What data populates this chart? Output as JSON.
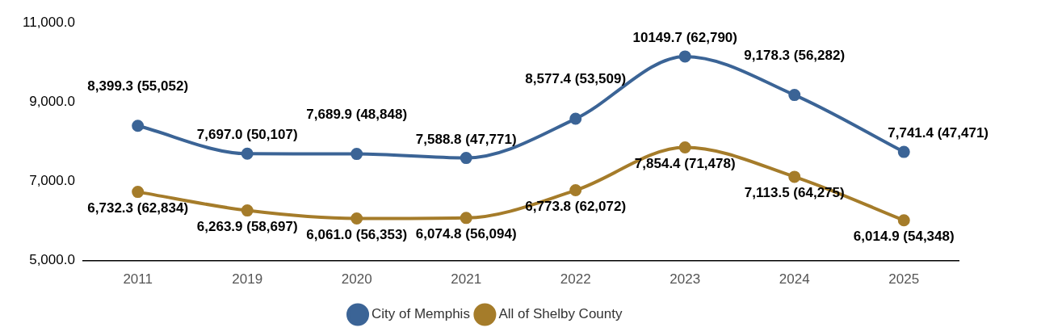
{
  "chart_data": {
    "type": "line",
    "categories": [
      "2011",
      "2019",
      "2020",
      "2021",
      "2022",
      "2023",
      "2024",
      "2025"
    ],
    "series": [
      {
        "name": "City of Memphis",
        "color": "#3b6496",
        "values": [
          8399.3,
          7697.0,
          7689.9,
          7588.8,
          8577.4,
          10149.7,
          9178.3,
          7741.4
        ],
        "value_labels": [
          "8,399.3 (55,052)",
          "7,697.0 (50,107)",
          "7,689.9 (48,848)",
          "7,588.8 (47,771)",
          "8,577.4 (53,509)",
          "10149.7 (62,790)",
          "9,178.3 (56,282)",
          "7,741.4 (47,471)"
        ]
      },
      {
        "name": "All of Shelby County",
        "color": "#a57c2a",
        "values": [
          6732.3,
          6263.9,
          6061.0,
          6074.8,
          6773.8,
          7854.4,
          7113.5,
          6014.9
        ],
        "value_labels": [
          "6,732.3 (62,834)",
          "6,263.9 (58,697)",
          "6,061.0 (56,353)",
          "6,074.8 (56,094)",
          "6,773.8 (62,072)",
          "7,854.4 (71,478)",
          "7,113.5 (64,275)",
          "6,014.9 (54,348)"
        ]
      }
    ],
    "ylim": [
      5000,
      11000
    ],
    "yticks": [
      {
        "value": 5000,
        "label": "5,000.0"
      },
      {
        "value": 7000,
        "label": "7,000.0"
      },
      {
        "value": 9000,
        "label": "9,000.0"
      },
      {
        "value": 11000,
        "label": "11,000.0"
      }
    ],
    "grid": false,
    "legend": "bottom",
    "marker": "circle",
    "line_style": "solid"
  }
}
